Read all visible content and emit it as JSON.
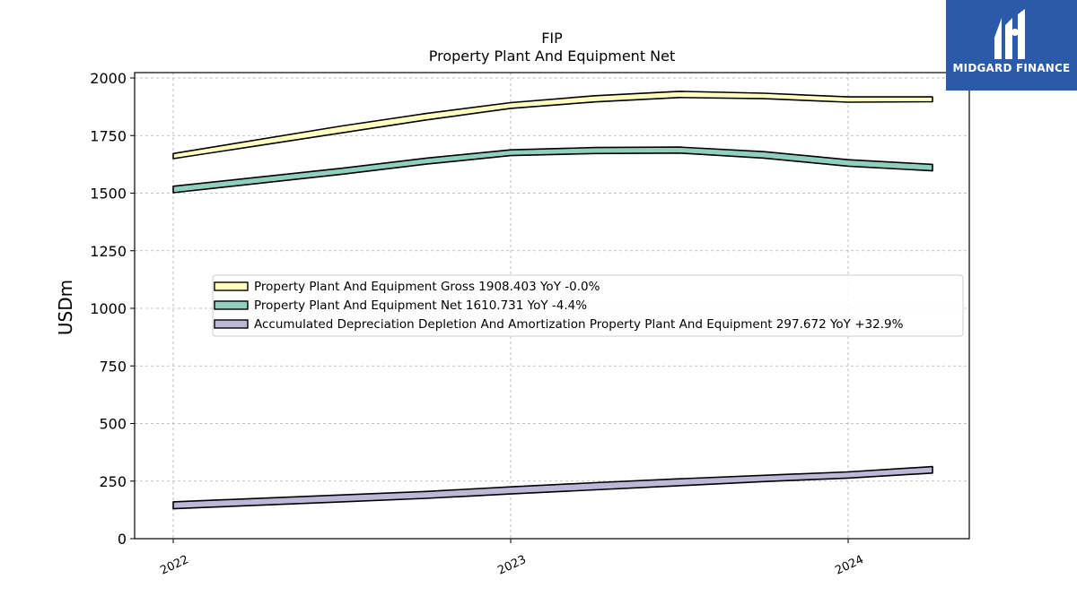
{
  "chart_data": {
    "type": "area",
    "title": "FIP",
    "subtitle": "Property Plant And Equipment Net",
    "ylabel": "USDm",
    "xlabel": "",
    "ylim": [
      0,
      2000
    ],
    "yticks": [
      "0",
      "250",
      "500",
      "750",
      "1000",
      "1250",
      "1500",
      "1750",
      "2000"
    ],
    "xticks": [
      "2022",
      "2023",
      "2024"
    ],
    "grid": true,
    "legend_position": "center-right",
    "x": [
      "2022-01",
      "2022-07",
      "2022-10",
      "2023-01",
      "2023-04",
      "2023-07",
      "2023-10",
      "2024-01",
      "2024-04"
    ],
    "series": [
      {
        "name": "Property Plant And Equipment Gross  1908.403 YoY -0.0%",
        "color": "#ffffbf",
        "upper": [
          1672,
          1792,
          1846,
          1893,
          1923,
          1942,
          1934,
          1918,
          1918
        ],
        "lower": [
          1650,
          1762,
          1818,
          1868,
          1896,
          1915,
          1910,
          1895,
          1897
        ]
      },
      {
        "name": "Property Plant And Equipment Net  1610.731 YoY -4.4%",
        "color": "#8ecfbd",
        "upper": [
          1530,
          1608,
          1652,
          1688,
          1698,
          1700,
          1680,
          1645,
          1625
        ],
        "lower": [
          1502,
          1582,
          1626,
          1663,
          1672,
          1674,
          1652,
          1617,
          1597
        ]
      },
      {
        "name": "Accumulated Depreciation Depletion And Amortization Property Plant And Equipment  297.672 YoY +32.9%",
        "color": "#bcb8d8",
        "upper": [
          160,
          190,
          205,
          225,
          243,
          260,
          275,
          290,
          313
        ],
        "lower": [
          130,
          160,
          175,
          194,
          212,
          230,
          248,
          263,
          285
        ]
      }
    ]
  },
  "logo": {
    "text": "MIDGARD FINANCE",
    "bg_color": "#2b5aa8"
  }
}
